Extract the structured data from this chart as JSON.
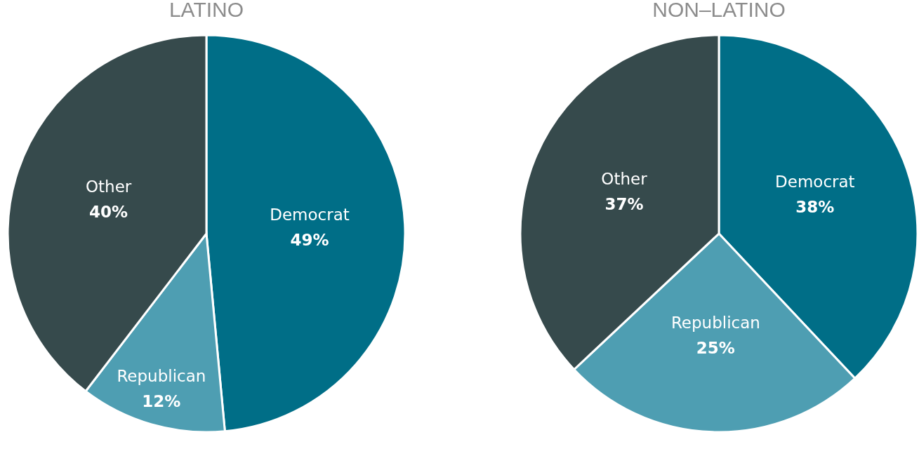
{
  "chart_data": [
    {
      "type": "pie",
      "title": "LATINO",
      "categories": [
        "Democrat",
        "Republican",
        "Other"
      ],
      "values": [
        49,
        12,
        40
      ],
      "colors": [
        "#006e87",
        "#4e9eb2",
        "#364a4c"
      ],
      "value_labels": [
        "49%",
        "12%",
        "40%"
      ]
    },
    {
      "type": "pie",
      "title": "NON–LATINO",
      "categories": [
        "Democrat",
        "Republican",
        "Other"
      ],
      "values": [
        38,
        25,
        37
      ],
      "colors": [
        "#006e87",
        "#4e9eb2",
        "#364a4c"
      ],
      "value_labels": [
        "38%",
        "25%",
        "37%"
      ]
    }
  ]
}
